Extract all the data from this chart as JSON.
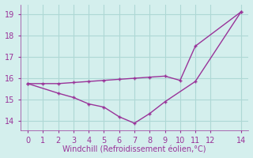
{
  "x_upper": [
    0,
    1,
    2,
    3,
    4,
    5,
    6,
    7,
    8,
    9,
    10,
    11,
    14
  ],
  "y_upper": [
    15.75,
    15.75,
    15.75,
    15.8,
    15.85,
    15.9,
    15.95,
    16.0,
    16.05,
    16.1,
    15.9,
    17.5,
    19.1
  ],
  "x_lower": [
    0,
    2,
    3,
    4,
    5,
    6,
    7,
    8,
    9,
    11,
    14
  ],
  "y_lower": [
    15.75,
    15.3,
    15.1,
    14.8,
    14.65,
    14.2,
    13.9,
    14.35,
    14.9,
    15.85,
    19.1
  ],
  "line_color": "#993399",
  "bg_color": "#d4efed",
  "grid_color": "#aed8d5",
  "xlabel": "Windchill (Refroidissement éolien,°C)",
  "xlim": [
    -0.5,
    14.5
  ],
  "ylim": [
    13.55,
    19.45
  ],
  "xticks": [
    0,
    1,
    2,
    3,
    4,
    5,
    6,
    7,
    8,
    9,
    10,
    11,
    12,
    14
  ],
  "yticks": [
    14,
    15,
    16,
    17,
    18,
    19
  ],
  "xlabel_color": "#993399",
  "tick_color": "#993399",
  "markersize": 3,
  "linewidth": 1.0
}
